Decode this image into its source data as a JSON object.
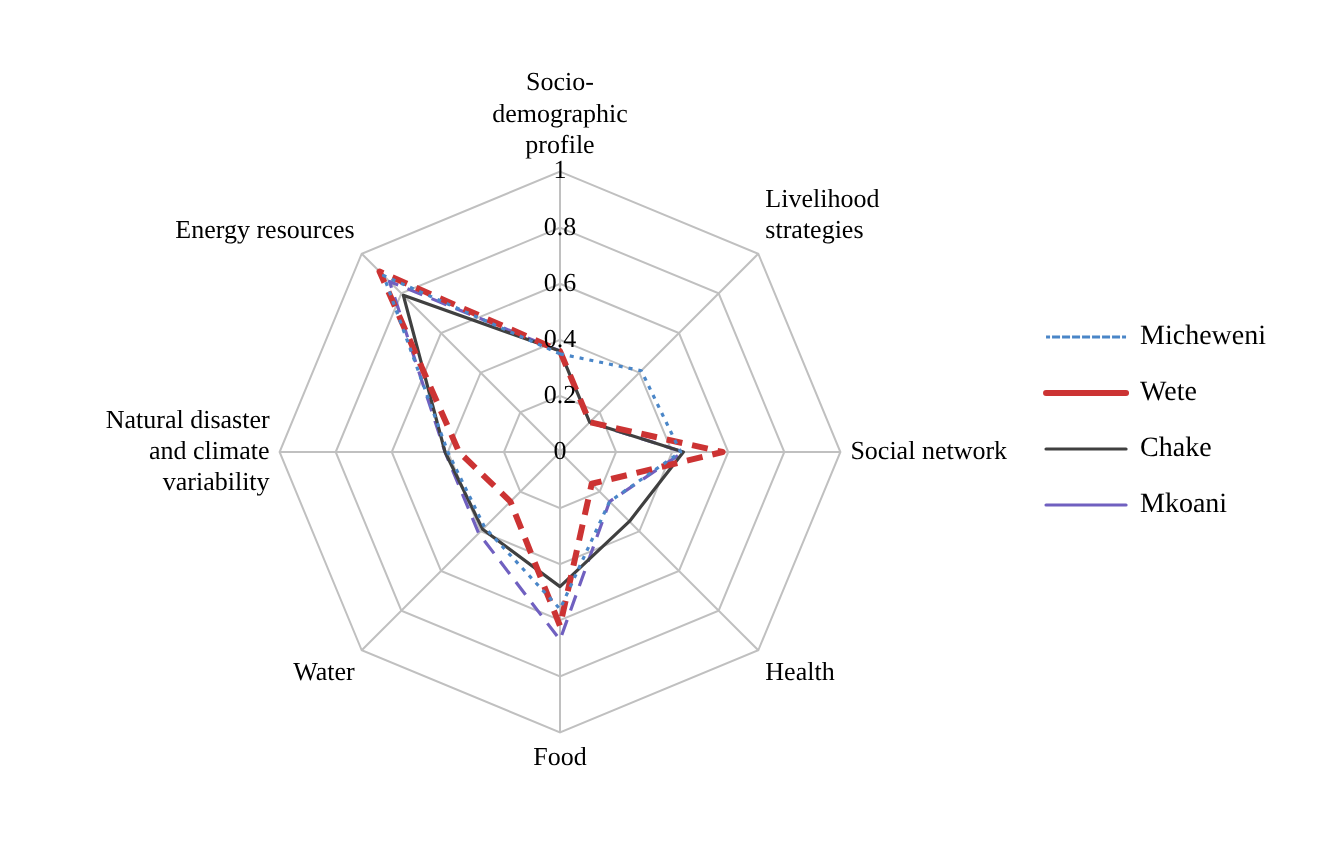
{
  "chart_data": {
    "type": "radar",
    "categories": [
      "Socio-demographic profile",
      "Livelihood strategies",
      "Social network",
      "Health",
      "Food",
      "Water",
      "Natural disaster and climate variability",
      "Energy resources"
    ],
    "series": [
      {
        "name": "Micheweni",
        "color": "#4a86c8",
        "line_style": "dotted",
        "values": [
          0.35,
          0.41,
          0.43,
          0.25,
          0.56,
          0.38,
          0.4,
          0.89
        ]
      },
      {
        "name": "Wete",
        "color": "#cc3333",
        "line_style": "dashed",
        "values": [
          0.36,
          0.15,
          0.58,
          0.16,
          0.62,
          0.25,
          0.36,
          0.91
        ]
      },
      {
        "name": "Chake",
        "color": "#404040",
        "line_style": "solid",
        "values": [
          0.36,
          0.15,
          0.44,
          0.35,
          0.48,
          0.39,
          0.41,
          0.79
        ]
      },
      {
        "name": "Mkoani",
        "color": "#7060c0",
        "line_style": "dashed",
        "values": [
          0.36,
          0.15,
          0.44,
          0.25,
          0.67,
          0.41,
          0.41,
          0.86
        ]
      }
    ],
    "ylim": [
      0,
      1
    ],
    "yticks": [
      0,
      0.2,
      0.4,
      0.6,
      0.8,
      1
    ],
    "grid": true,
    "legend": "right",
    "marker": "none"
  }
}
